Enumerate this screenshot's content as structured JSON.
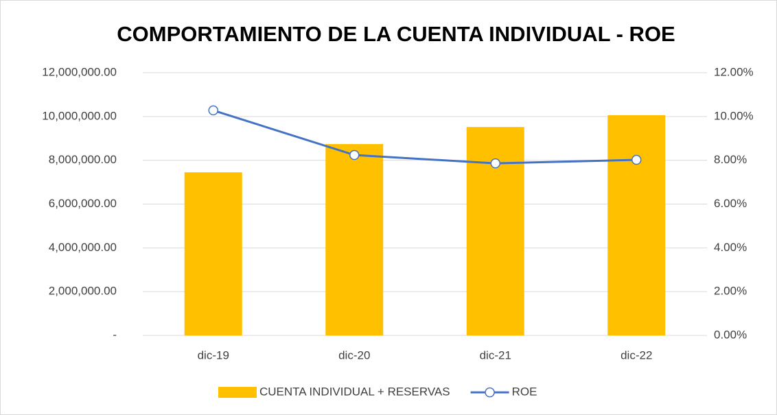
{
  "chart_data": {
    "type": "bar",
    "title": "COMPORTAMIENTO DE LA CUENTA INDIVIDUAL - ROE",
    "categories": [
      "dic-19",
      "dic-20",
      "dic-21",
      "dic-22"
    ],
    "series": [
      {
        "name": "CUENTA INDIVIDUAL + RESERVAS",
        "color": "#ffc000",
        "type": "bar",
        "values": [
          7450000,
          8740000,
          9520000,
          10060000
        ]
      },
      {
        "name": "ROE",
        "color": "#4472c4",
        "type": "line",
        "axis": "y2",
        "values": [
          10.28,
          8.24,
          7.86,
          8.02
        ]
      }
    ],
    "ylim": [
      0,
      12000000
    ],
    "yticks": [
      {
        "value": 0,
        "label": "-"
      },
      {
        "value": 2000000,
        "label": "2,000,000.00"
      },
      {
        "value": 4000000,
        "label": "4,000,000.00"
      },
      {
        "value": 6000000,
        "label": "6,000,000.00"
      },
      {
        "value": 8000000,
        "label": "8,000,000.00"
      },
      {
        "value": 10000000,
        "label": "10,000,000.00"
      },
      {
        "value": 12000000,
        "label": "12,000,000.00"
      }
    ],
    "y2lim": [
      0,
      12
    ],
    "y2ticks": [
      {
        "value": 0,
        "label": "0.00%"
      },
      {
        "value": 2,
        "label": "2.00%"
      },
      {
        "value": 4,
        "label": "4.00%"
      },
      {
        "value": 6,
        "label": "6.00%"
      },
      {
        "value": 8,
        "label": "8.00%"
      },
      {
        "value": 10,
        "label": "10.00%"
      },
      {
        "value": 12,
        "label": "12.00%"
      }
    ],
    "grid": true,
    "legend": "bottom"
  }
}
